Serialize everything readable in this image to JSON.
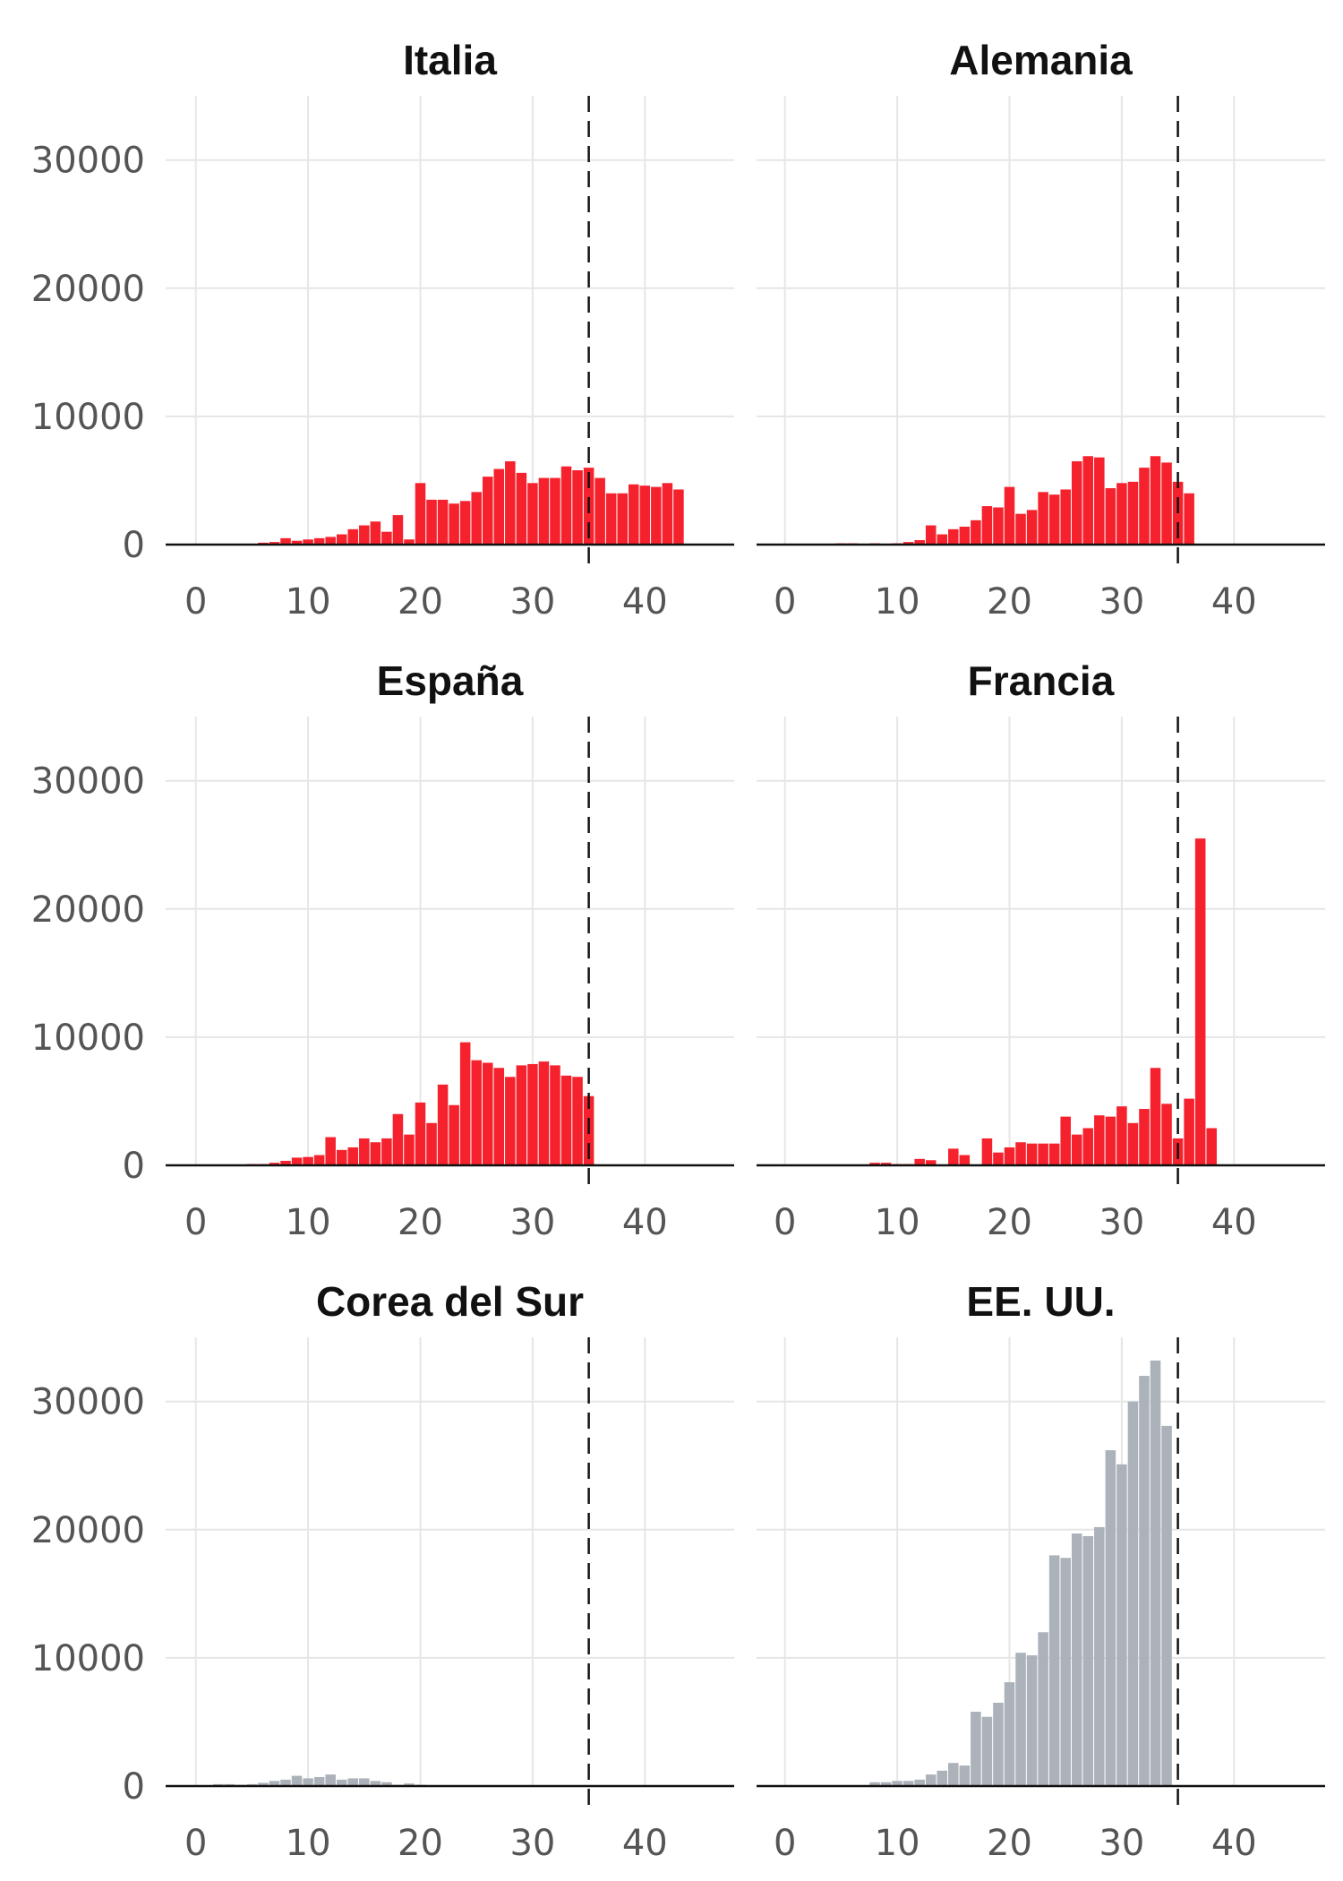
{
  "chart_data": {
    "type": "bar",
    "layout": "small-multiples-3x2",
    "shared_axes": {
      "x_ticks": [
        0,
        10,
        20,
        30,
        40
      ],
      "y_ticks": [
        0,
        10000,
        20000,
        30000
      ],
      "xlim": [
        -2.5,
        48
      ],
      "ylim": [
        0,
        35000
      ],
      "grid": true,
      "reference_line_x": 35,
      "reference_line_style": "dashed"
    },
    "colors": {
      "highlight": "#f5222d",
      "muted": "#abb2b9",
      "grid": "#e6e6e6",
      "axis": "#111111"
    },
    "panels": [
      {
        "title": "Italia",
        "color": "highlight",
        "x_start": 0,
        "values": [
          0,
          0,
          0,
          0,
          20,
          60,
          150,
          200,
          500,
          300,
          400,
          500,
          600,
          800,
          1200,
          1500,
          1800,
          1000,
          2300,
          400,
          4800,
          3500,
          3500,
          3200,
          3400,
          4100,
          5300,
          5900,
          6500,
          5600,
          4800,
          5200,
          5200,
          6100,
          5800,
          6000,
          5200,
          4000,
          4000,
          4700,
          4600,
          4500,
          4800,
          4300
        ]
      },
      {
        "title": "Alemania",
        "color": "highlight",
        "x_start": 0,
        "values": [
          0,
          0,
          0,
          0,
          0,
          100,
          100,
          50,
          100,
          50,
          100,
          200,
          350,
          1500,
          800,
          1200,
          1400,
          1900,
          3000,
          2900,
          4500,
          2400,
          2700,
          4100,
          3900,
          4300,
          6500,
          6900,
          6800,
          4400,
          4800,
          4900,
          6000,
          6900,
          6400,
          4900,
          4000
        ]
      },
      {
        "title": "España",
        "color": "highlight",
        "x_start": 0,
        "values": [
          0,
          0,
          0,
          0,
          0,
          100,
          100,
          200,
          350,
          600,
          650,
          800,
          2200,
          1200,
          1400,
          2100,
          1800,
          2100,
          4000,
          2400,
          4900,
          3300,
          6300,
          4700,
          9600,
          8200,
          8000,
          7600,
          6900,
          7800,
          7900,
          8100,
          7800,
          7000,
          6900,
          5400
        ]
      },
      {
        "title": "Francia",
        "color": "highlight",
        "x_start": 0,
        "values": [
          0,
          0,
          0,
          0,
          0,
          0,
          0,
          50,
          200,
          200,
          100,
          100,
          500,
          400,
          0,
          1300,
          800,
          0,
          2100,
          1000,
          1400,
          1800,
          1700,
          1700,
          1700,
          3800,
          2400,
          2900,
          3900,
          3800,
          4600,
          3300,
          4400,
          7600,
          4800,
          2100,
          5200,
          25500,
          2900
        ]
      },
      {
        "title": "Corea del Sur",
        "color": "muted",
        "x_start": 0,
        "values": [
          0,
          0,
          150,
          150,
          100,
          150,
          250,
          400,
          500,
          800,
          600,
          700,
          900,
          500,
          600,
          600,
          400,
          300,
          100,
          200,
          100,
          50,
          50,
          50,
          50,
          50,
          50,
          50,
          50,
          50,
          50,
          50,
          50,
          50,
          50,
          50,
          50,
          50,
          50,
          50,
          50,
          50,
          50,
          50,
          50,
          50
        ]
      },
      {
        "title": "EE. UU.",
        "color": "muted",
        "x_start": 0,
        "values": [
          0,
          0,
          0,
          0,
          0,
          0,
          0,
          0,
          300,
          300,
          400,
          400,
          500,
          900,
          1200,
          1800,
          1600,
          5800,
          5400,
          6500,
          8100,
          10400,
          10200,
          12000,
          18000,
          17800,
          19700,
          19500,
          20200,
          26200,
          25100,
          30000,
          32000,
          33200,
          28100
        ]
      }
    ]
  }
}
